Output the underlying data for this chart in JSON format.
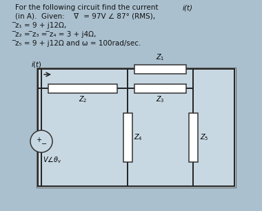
{
  "bg_color": "#aac0ce",
  "circuit_bg": "#c8d8e2",
  "text_color": "#111111",
  "wire_color": "#222222",
  "resistor_fill": "#f0f0f0",
  "title_line1": "For the following circuit find the current ",
  "title_bold": "i(t)",
  "line2": "(in A).  Given:  V̅ = 97V ∠ 87° (RMS),",
  "line3": "z̅₁ = 9 + j12Ω,",
  "line4": "z̅₂ = z̅₃ = z̅₄ = 3 + j4Ω,",
  "line5": "z̅₅ = 9 + j12Ω and ω = 100rad/sec.",
  "L": 55,
  "R": 340,
  "T": 100,
  "B": 270,
  "M1x": 185,
  "M2x": 280,
  "Tmid": 128,
  "font_size_text": 7.5,
  "font_size_label": 7.0
}
